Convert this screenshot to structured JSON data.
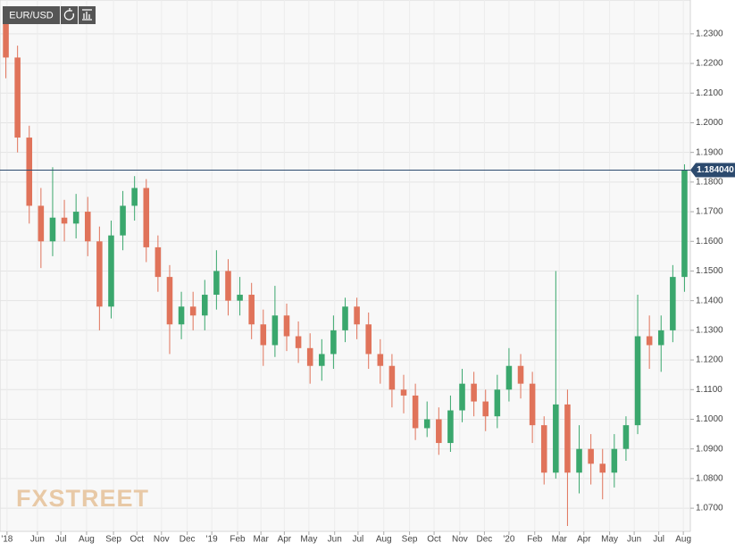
{
  "chart_data": {
    "type": "candlestick",
    "title": "EUR/USD",
    "watermark": "FXSTREET",
    "up_color": "#3aa76d",
    "down_color": "#e0735a",
    "grid": true,
    "xlim": [
      0,
      59
    ],
    "ylim": [
      1.0622,
      1.2414
    ],
    "xticks": [
      {
        "value": 0.6,
        "label": "'18"
      },
      {
        "value": 3.2,
        "label": "Jun"
      },
      {
        "value": 5.2,
        "label": "Jul"
      },
      {
        "value": 7.4,
        "label": "Aug"
      },
      {
        "value": 9.7,
        "label": "Sep"
      },
      {
        "value": 11.7,
        "label": "Oct"
      },
      {
        "value": 13.8,
        "label": "Nov"
      },
      {
        "value": 16.0,
        "label": "Dec"
      },
      {
        "value": 18.1,
        "label": "'19"
      },
      {
        "value": 20.3,
        "label": "Feb"
      },
      {
        "value": 22.3,
        "label": "Mar"
      },
      {
        "value": 24.3,
        "label": "Apr"
      },
      {
        "value": 26.4,
        "label": "May"
      },
      {
        "value": 28.6,
        "label": "Jun"
      },
      {
        "value": 30.6,
        "label": "Jul"
      },
      {
        "value": 32.8,
        "label": "Aug"
      },
      {
        "value": 35.0,
        "label": "Sep"
      },
      {
        "value": 37.1,
        "label": "Oct"
      },
      {
        "value": 39.3,
        "label": "Nov"
      },
      {
        "value": 41.4,
        "label": "Dec"
      },
      {
        "value": 43.5,
        "label": "'20"
      },
      {
        "value": 45.7,
        "label": "Feb"
      },
      {
        "value": 47.8,
        "label": "Mar"
      },
      {
        "value": 49.9,
        "label": "Apr"
      },
      {
        "value": 52.1,
        "label": "May"
      },
      {
        "value": 54.2,
        "label": "Jun"
      },
      {
        "value": 56.3,
        "label": "Jul"
      },
      {
        "value": 58.4,
        "label": "Aug"
      }
    ],
    "yticks": [
      {
        "value": 1.07,
        "label": "1.0700"
      },
      {
        "value": 1.08,
        "label": "1.0800"
      },
      {
        "value": 1.09,
        "label": "1.0900"
      },
      {
        "value": 1.1,
        "label": "1.1000"
      },
      {
        "value": 1.11,
        "label": "1.1100"
      },
      {
        "value": 1.12,
        "label": "1.1200"
      },
      {
        "value": 1.13,
        "label": "1.1300"
      },
      {
        "value": 1.14,
        "label": "1.1400"
      },
      {
        "value": 1.15,
        "label": "1.1500"
      },
      {
        "value": 1.16,
        "label": "1.1600"
      },
      {
        "value": 1.17,
        "label": "1.1700"
      },
      {
        "value": 1.18,
        "label": "1.1800"
      },
      {
        "value": 1.19,
        "label": "1.1900"
      },
      {
        "value": 1.2,
        "label": "1.2000"
      },
      {
        "value": 1.21,
        "label": "1.2100"
      },
      {
        "value": 1.22,
        "label": "1.2200"
      },
      {
        "value": 1.23,
        "label": "1.2300"
      }
    ],
    "last_price": {
      "value": 1.18404,
      "label": "1.184040"
    },
    "open": [
      1.235,
      1.222,
      1.195,
      1.172,
      1.16,
      1.168,
      1.166,
      1.17,
      1.16,
      1.138,
      1.162,
      1.172,
      1.178,
      1.158,
      1.148,
      1.132,
      1.138,
      1.135,
      1.142,
      1.15,
      1.14,
      1.142,
      1.132,
      1.125,
      1.135,
      1.128,
      1.124,
      1.118,
      1.122,
      1.13,
      1.138,
      1.132,
      1.122,
      1.118,
      1.11,
      1.108,
      1.097,
      1.1,
      1.092,
      1.103,
      1.112,
      1.106,
      1.101,
      1.11,
      1.118,
      1.112,
      1.098,
      1.082,
      1.105,
      1.082,
      1.09,
      1.085,
      1.082,
      1.09,
      1.098,
      1.128,
      1.125,
      1.13,
      1.148
    ],
    "high": [
      1.238,
      1.226,
      1.199,
      1.178,
      1.185,
      1.174,
      1.176,
      1.175,
      1.165,
      1.167,
      1.177,
      1.182,
      1.181,
      1.162,
      1.152,
      1.143,
      1.143,
      1.147,
      1.157,
      1.154,
      1.148,
      1.146,
      1.137,
      1.145,
      1.139,
      1.133,
      1.129,
      1.127,
      1.135,
      1.141,
      1.141,
      1.136,
      1.127,
      1.122,
      1.115,
      1.112,
      1.106,
      1.104,
      1.108,
      1.117,
      1.116,
      1.11,
      1.115,
      1.124,
      1.122,
      1.116,
      1.101,
      1.15,
      1.11,
      1.098,
      1.095,
      1.09,
      1.095,
      1.101,
      1.142,
      1.135,
      1.135,
      1.152,
      1.186
    ],
    "low": [
      1.215,
      1.19,
      1.166,
      1.151,
      1.155,
      1.16,
      1.161,
      1.155,
      1.13,
      1.134,
      1.157,
      1.167,
      1.153,
      1.143,
      1.122,
      1.127,
      1.13,
      1.13,
      1.137,
      1.135,
      1.135,
      1.127,
      1.118,
      1.121,
      1.123,
      1.119,
      1.112,
      1.113,
      1.117,
      1.126,
      1.127,
      1.117,
      1.112,
      1.104,
      1.102,
      1.093,
      1.094,
      1.088,
      1.089,
      1.099,
      1.101,
      1.096,
      1.097,
      1.106,
      1.107,
      1.092,
      1.078,
      1.08,
      1.064,
      1.075,
      1.078,
      1.073,
      1.077,
      1.086,
      1.095,
      1.117,
      1.116,
      1.126,
      1.143
    ],
    "close": [
      1.222,
      1.195,
      1.172,
      1.16,
      1.168,
      1.166,
      1.17,
      1.16,
      1.138,
      1.162,
      1.172,
      1.178,
      1.158,
      1.148,
      1.132,
      1.138,
      1.135,
      1.142,
      1.15,
      1.14,
      1.142,
      1.132,
      1.125,
      1.135,
      1.128,
      1.124,
      1.118,
      1.122,
      1.13,
      1.138,
      1.132,
      1.122,
      1.118,
      1.11,
      1.108,
      1.097,
      1.1,
      1.092,
      1.103,
      1.112,
      1.106,
      1.101,
      1.11,
      1.118,
      1.112,
      1.098,
      1.082,
      1.105,
      1.082,
      1.09,
      1.085,
      1.082,
      1.09,
      1.098,
      1.128,
      1.125,
      1.13,
      1.148,
      1.184
    ]
  }
}
